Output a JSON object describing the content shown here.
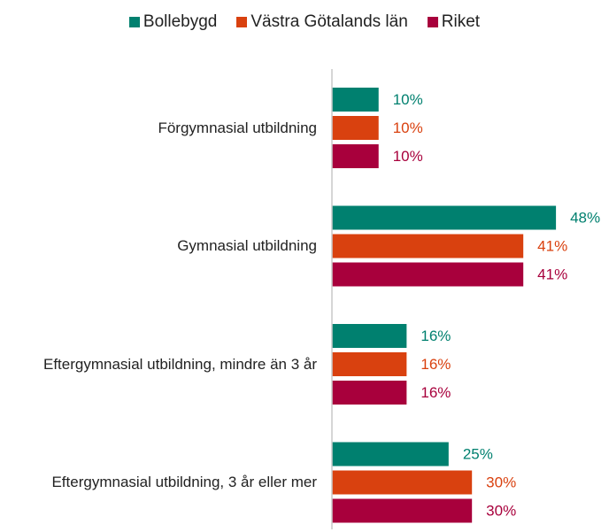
{
  "chart_data": {
    "type": "bar",
    "orientation": "horizontal",
    "categories": [
      "Förgymnasial utbildning",
      "Gymnasial utbildning",
      "Eftergymnasial utbildning, mindre än 3 år",
      "Eftergymnasial utbildning, 3 år eller mer"
    ],
    "series": [
      {
        "name": "Bollebygd",
        "color": "#00806f",
        "values": [
          10,
          48,
          16,
          25
        ],
        "value_labels": [
          "10%",
          "48%",
          "16%",
          "25%"
        ]
      },
      {
        "name": "Västra Götalands län",
        "color": "#d9410f",
        "values": [
          10,
          41,
          16,
          30
        ],
        "value_labels": [
          "10%",
          "41%",
          "16%",
          "30%"
        ]
      },
      {
        "name": "Riket",
        "color": "#a8003c",
        "values": [
          10,
          41,
          16,
          30
        ],
        "value_labels": [
          "10%",
          "41%",
          "16%",
          "30%"
        ]
      }
    ],
    "xlim": [
      0,
      55
    ],
    "legend": "top"
  }
}
